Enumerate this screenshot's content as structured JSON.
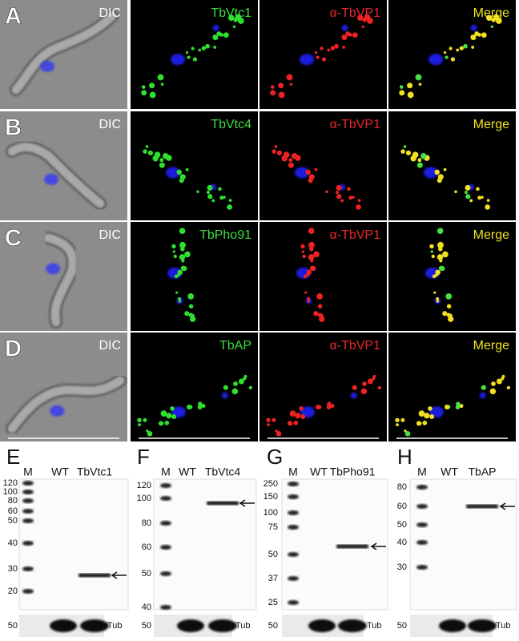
{
  "panels": [
    {
      "letter": "A",
      "labels": [
        "DIC",
        "TbVtc1",
        "α-TbVP1",
        "Merge"
      ]
    },
    {
      "letter": "B",
      "labels": [
        "DIC",
        "TbVtc4",
        "α-TbVP1",
        "Merge"
      ]
    },
    {
      "letter": "C",
      "labels": [
        "DIC",
        "TbPho91",
        "α-TbVP1",
        "Merge"
      ]
    },
    {
      "letter": "D",
      "labels": [
        "DIC",
        "TbAP",
        "α-TbVP1",
        "Merge"
      ]
    }
  ],
  "blots": [
    {
      "letter": "E",
      "lanes": [
        "M",
        "WT",
        "TbVtc1"
      ],
      "markers": [
        120,
        100,
        80,
        60,
        50,
        40,
        30,
        20
      ],
      "loading_marker": 50,
      "loading_label": "Tub"
    },
    {
      "letter": "F",
      "lanes": [
        "M",
        "WT",
        "TbVtc4"
      ],
      "markers": [
        120,
        100,
        80,
        60,
        50,
        40
      ],
      "loading_marker": 50,
      "loading_label": "Tub"
    },
    {
      "letter": "G",
      "lanes": [
        "M",
        "WT",
        "TbPho91"
      ],
      "markers": [
        250,
        150,
        100,
        75,
        50,
        37,
        25
      ],
      "loading_marker": 50,
      "loading_label": "Tub"
    },
    {
      "letter": "H",
      "lanes": [
        "M",
        "WT",
        "TbAP"
      ],
      "markers": [
        80,
        60,
        50,
        40,
        30
      ],
      "loading_marker": 50,
      "loading_label": "Tub"
    }
  ]
}
